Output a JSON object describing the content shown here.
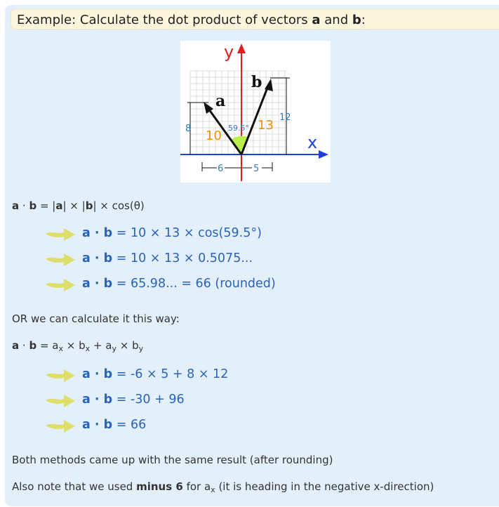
{
  "header": {
    "prefix": "Example: Calculate the dot product of vectors ",
    "a": "a",
    "and": " and ",
    "b": "b",
    "colon": ":"
  },
  "figure": {
    "axis_x": "x",
    "axis_y": "y",
    "vector_a": "a",
    "vector_b": "b",
    "len_a": "10",
    "len_b": "13",
    "angle": "59.5°",
    "a_y": "8",
    "b_y": "12",
    "a_x": "6",
    "b_x": "5",
    "colors": {
      "axis_x": "#1f3fd8",
      "axis_y": "#e02020",
      "angle_fill": "#b8f04a",
      "orange": "#f09000",
      "dim_blue": "#2b7fc0"
    }
  },
  "formula1": {
    "a": "a",
    "dot": " · ",
    "b": "b",
    "eq": " = |",
    "a2": "a",
    "mid": "| × |",
    "b2": "b",
    "end": "| × cos(θ)"
  },
  "steps1": [
    {
      "a": "a",
      "dot": " · ",
      "b": "b",
      "rest": " = 10 × 13 × cos(59.5°)"
    },
    {
      "a": "a",
      "dot": " · ",
      "b": "b",
      "rest": " = 10 × 13 × 0.5075..."
    },
    {
      "a": "a",
      "dot": " · ",
      "b": "b",
      "rest": " = 65.98... = 66 (rounded)"
    }
  ],
  "or_text": "OR we can calculate it this way:",
  "formula2": {
    "a": "a",
    "dot": " · ",
    "b": "b",
    "eq": " = a",
    "sx1": "x",
    "t1": " × b",
    "sx2": "x",
    "t2": " + a",
    "sy1": "y",
    "t3": " × b",
    "sy2": "y"
  },
  "steps2": [
    {
      "a": "a",
      "dot": " · ",
      "b": "b",
      "rest": " = -6 × 5 + 8 × 12"
    },
    {
      "a": "a",
      "dot": " · ",
      "b": "b",
      "rest": " = -30 + 96"
    },
    {
      "a": "a",
      "dot": " · ",
      "b": "b",
      "rest": " = 66"
    }
  ],
  "conclusion": "Both methods came up with the same result (after rounding)",
  "note": {
    "pre": "Also note that we used ",
    "bold": "minus 6",
    "mid": " for a",
    "sub": "x",
    "post": " (it is heading in the negative x-direction)"
  },
  "arrow_color": "#dede6a"
}
